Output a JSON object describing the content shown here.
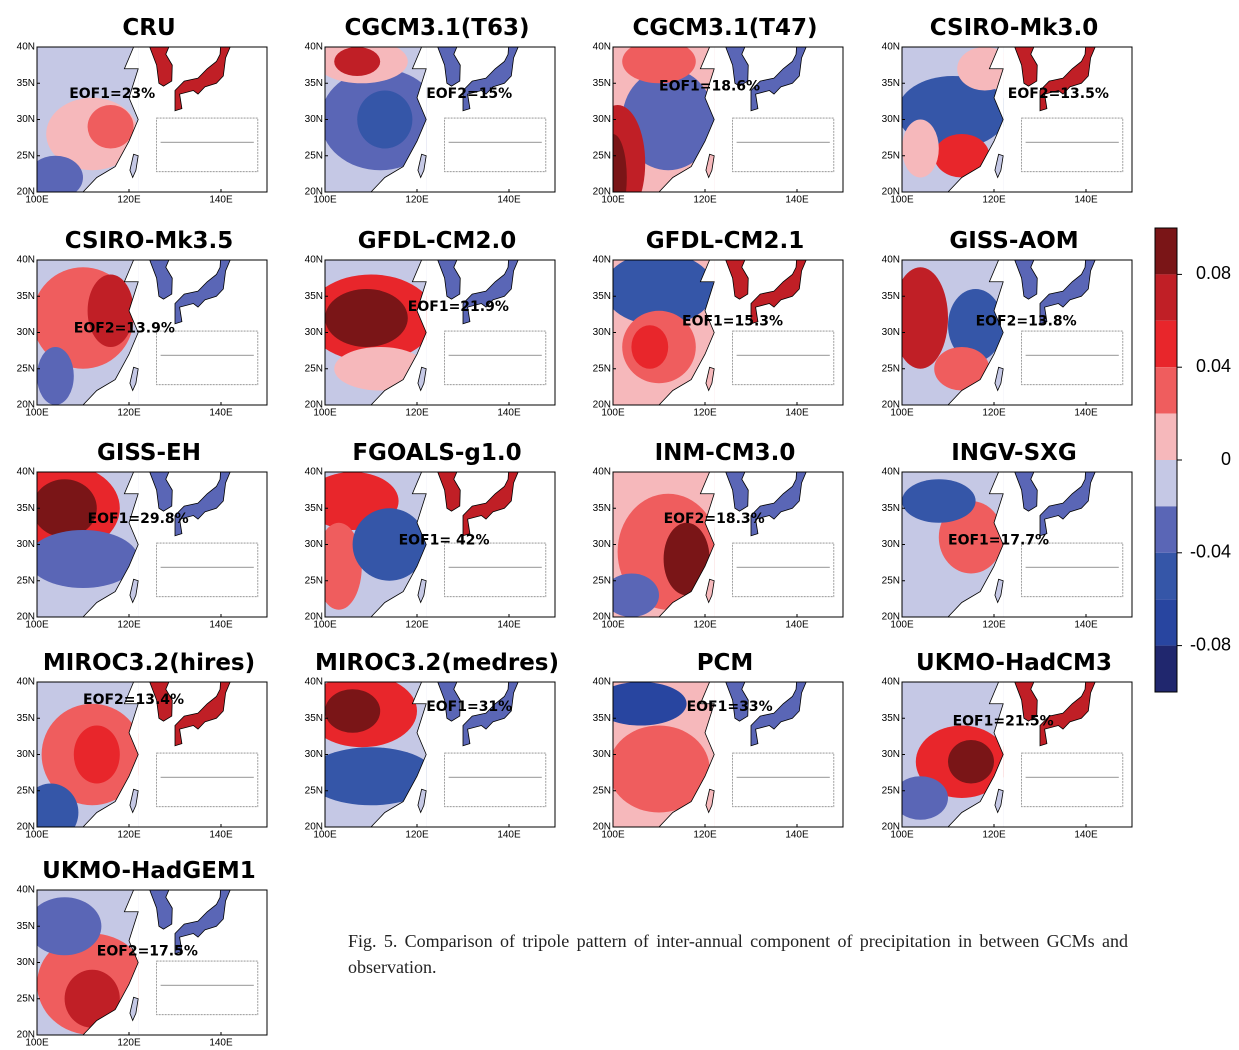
{
  "panels": [
    {
      "title": "CRU",
      "eof": "EOF1=23%"
    },
    {
      "title": "CGCM3.1(T63)",
      "eof": "EOF2=15%"
    },
    {
      "title": "CGCM3.1(T47)",
      "eof": "EOF1=18.6%"
    },
    {
      "title": "CSIRO-Mk3.0",
      "eof": "EOF2=13.5%"
    },
    {
      "title": "CSIRO-Mk3.5",
      "eof": "EOF2=13.9%"
    },
    {
      "title": "GFDL-CM2.0",
      "eof": "EOF1=21.9%"
    },
    {
      "title": "GFDL-CM2.1",
      "eof": "EOF1=15.3%"
    },
    {
      "title": "GISS-AOM",
      "eof": "EOF2=13.8%"
    },
    {
      "title": "GISS-EH",
      "eof": "EOF1=29.8%"
    },
    {
      "title": "FGOALS-g1.0",
      "eof": "EOF1= 42%"
    },
    {
      "title": "INM-CM3.0",
      "eof": "EOF2=18.3%"
    },
    {
      "title": "INGV-SXG",
      "eof": "EOF1=17.7%"
    },
    {
      "title": "MIROC3.2(hires)",
      "eof": "EOF2=13.4%"
    },
    {
      "title": "MIROC3.2(medres)",
      "eof": "EOF1=31%"
    },
    {
      "title": "PCM",
      "eof": "EOF1=33%"
    },
    {
      "title": "UKMO-HadCM3",
      "eof": "EOF1=21.5%"
    },
    {
      "title": "UKMO-HadGEM1",
      "eof": "EOF2=17.5%"
    }
  ],
  "map": {
    "lat_ticks": [
      {
        "value": 40,
        "label": "40N"
      },
      {
        "value": 35,
        "label": "35N"
      },
      {
        "value": 30,
        "label": "30N"
      },
      {
        "value": 25,
        "label": "25N"
      },
      {
        "value": 20,
        "label": "20N"
      }
    ],
    "lon_ticks": [
      {
        "value": 100,
        "label": "100E"
      },
      {
        "value": 120,
        "label": "120E"
      },
      {
        "value": 140,
        "label": "140E"
      }
    ]
  },
  "colorbar": {
    "lim": [
      -0.1,
      0.1
    ],
    "ticks": [
      0.08,
      0.04,
      0,
      -0.04,
      -0.08
    ],
    "colors": [
      "#7a1517",
      "#c01f26",
      "#e8262b",
      "#ef5d5e",
      "#f6b8bb",
      "#c5c8e5",
      "#5a66b6",
      "#3556a8",
      "#2845a0",
      "#20276e"
    ]
  },
  "caption": "Fig. 5. Comparison of tripole pattern of inter-annual component of precipitation in between GCMs and observation."
}
